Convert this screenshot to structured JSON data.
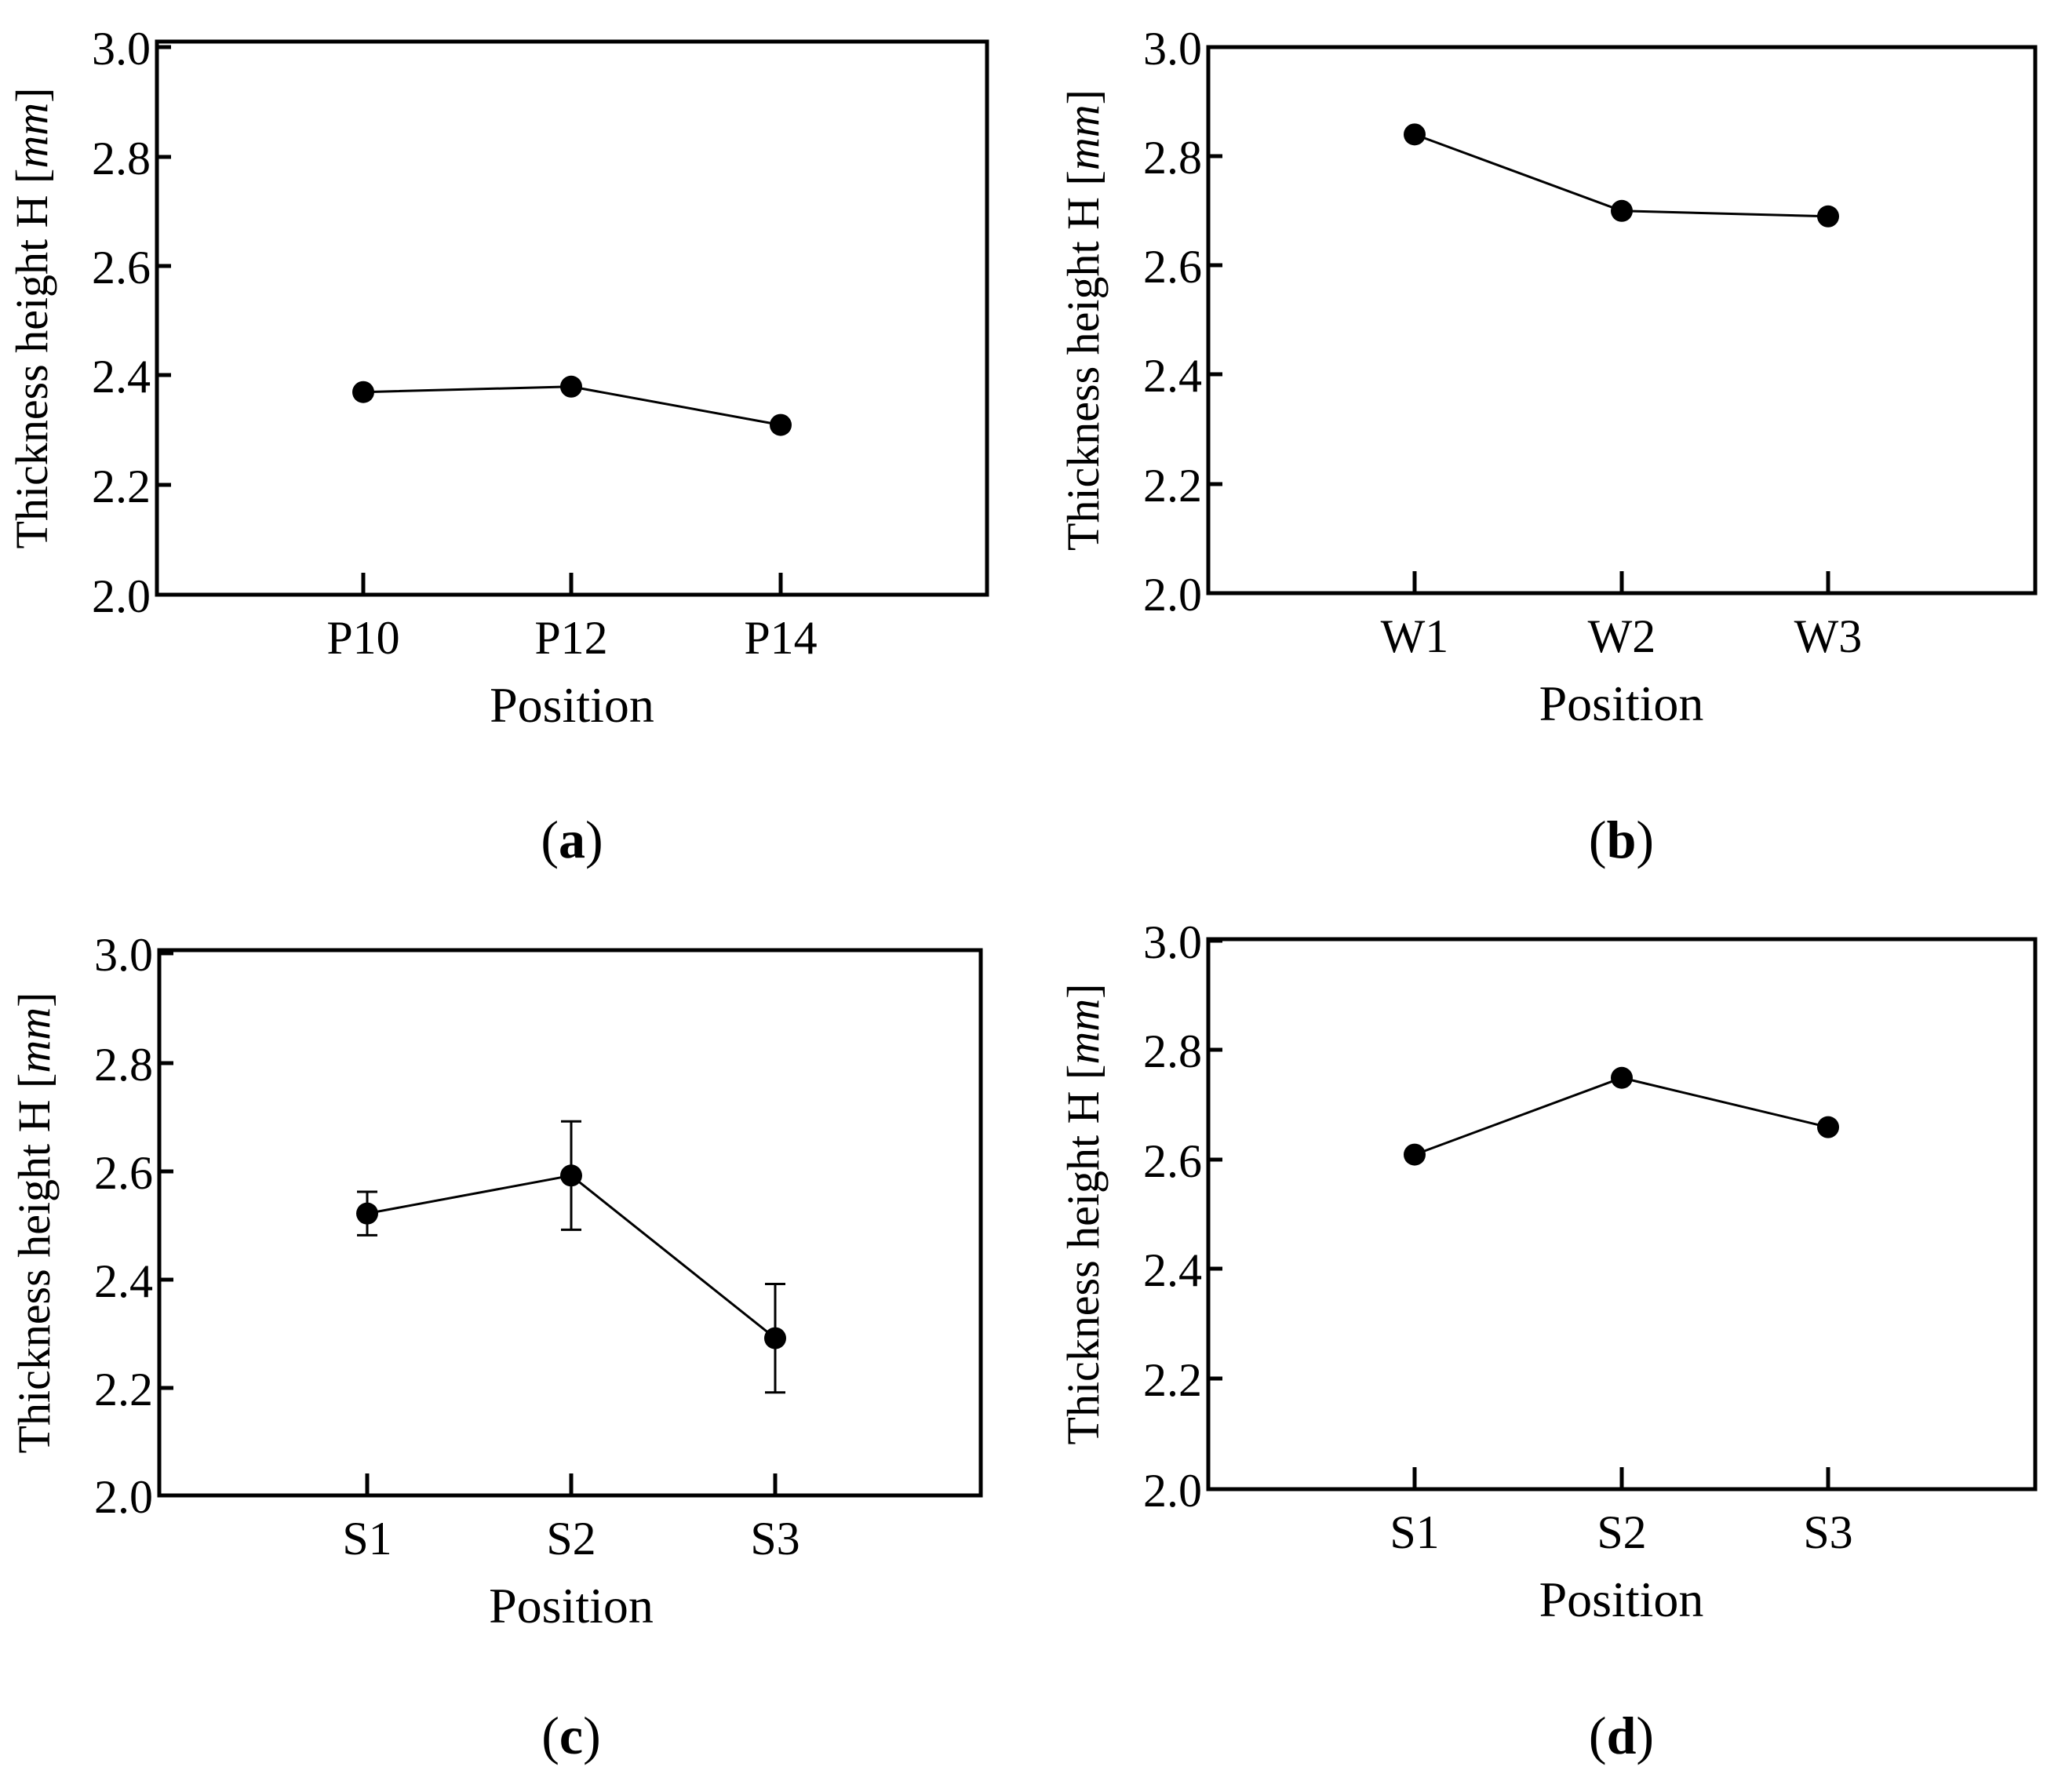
{
  "chart_data": [
    {
      "type": "line",
      "panel_label": "a",
      "categories": [
        "P10",
        "P12",
        "P14"
      ],
      "series": [
        {
          "name": "Thickness height",
          "values": [
            2.37,
            2.38,
            2.31
          ]
        }
      ],
      "xlabel": "Position",
      "ylabel_main": "Thickness height H",
      "ylabel_unit": "mm",
      "ylim": [
        2.0,
        3.0
      ],
      "yticks": [
        "2.0",
        "2.2",
        "2.4",
        "2.6",
        "2.8",
        "3.0"
      ],
      "grid": false
    },
    {
      "type": "line",
      "panel_label": "b",
      "categories": [
        "W1",
        "W2",
        "W3"
      ],
      "series": [
        {
          "name": "Thickness height",
          "values": [
            2.84,
            2.7,
            2.69
          ]
        }
      ],
      "xlabel": "Position",
      "ylabel_main": "Thickness height H",
      "ylabel_unit": "mm",
      "ylim": [
        2.0,
        3.0
      ],
      "yticks": [
        "2.0",
        "2.2",
        "2.4",
        "2.6",
        "2.8",
        "3.0"
      ],
      "grid": false
    },
    {
      "type": "line",
      "panel_label": "c",
      "categories": [
        "S1",
        "S2",
        "S3"
      ],
      "series": [
        {
          "name": "Thickness height",
          "values": [
            2.52,
            2.59,
            2.29
          ],
          "error_low": [
            2.48,
            2.49,
            2.19
          ],
          "error_high": [
            2.56,
            2.69,
            2.39
          ]
        }
      ],
      "xlabel": "Position",
      "ylabel_main": "Thickness height H",
      "ylabel_unit": "mm",
      "ylim": [
        2.0,
        3.0
      ],
      "yticks": [
        "2.0",
        "2.2",
        "2.4",
        "2.6",
        "2.8",
        "3.0"
      ],
      "grid": false
    },
    {
      "type": "line",
      "panel_label": "d",
      "categories": [
        "S1",
        "S2",
        "S3"
      ],
      "series": [
        {
          "name": "Thickness height",
          "values": [
            2.61,
            2.75,
            2.66
          ]
        }
      ],
      "xlabel": "Position",
      "ylabel_main": "Thickness height H",
      "ylabel_unit": "mm",
      "ylim": [
        2.0,
        3.0
      ],
      "yticks": [
        "2.0",
        "2.2",
        "2.4",
        "2.6",
        "2.8",
        "3.0"
      ],
      "grid": false
    }
  ]
}
